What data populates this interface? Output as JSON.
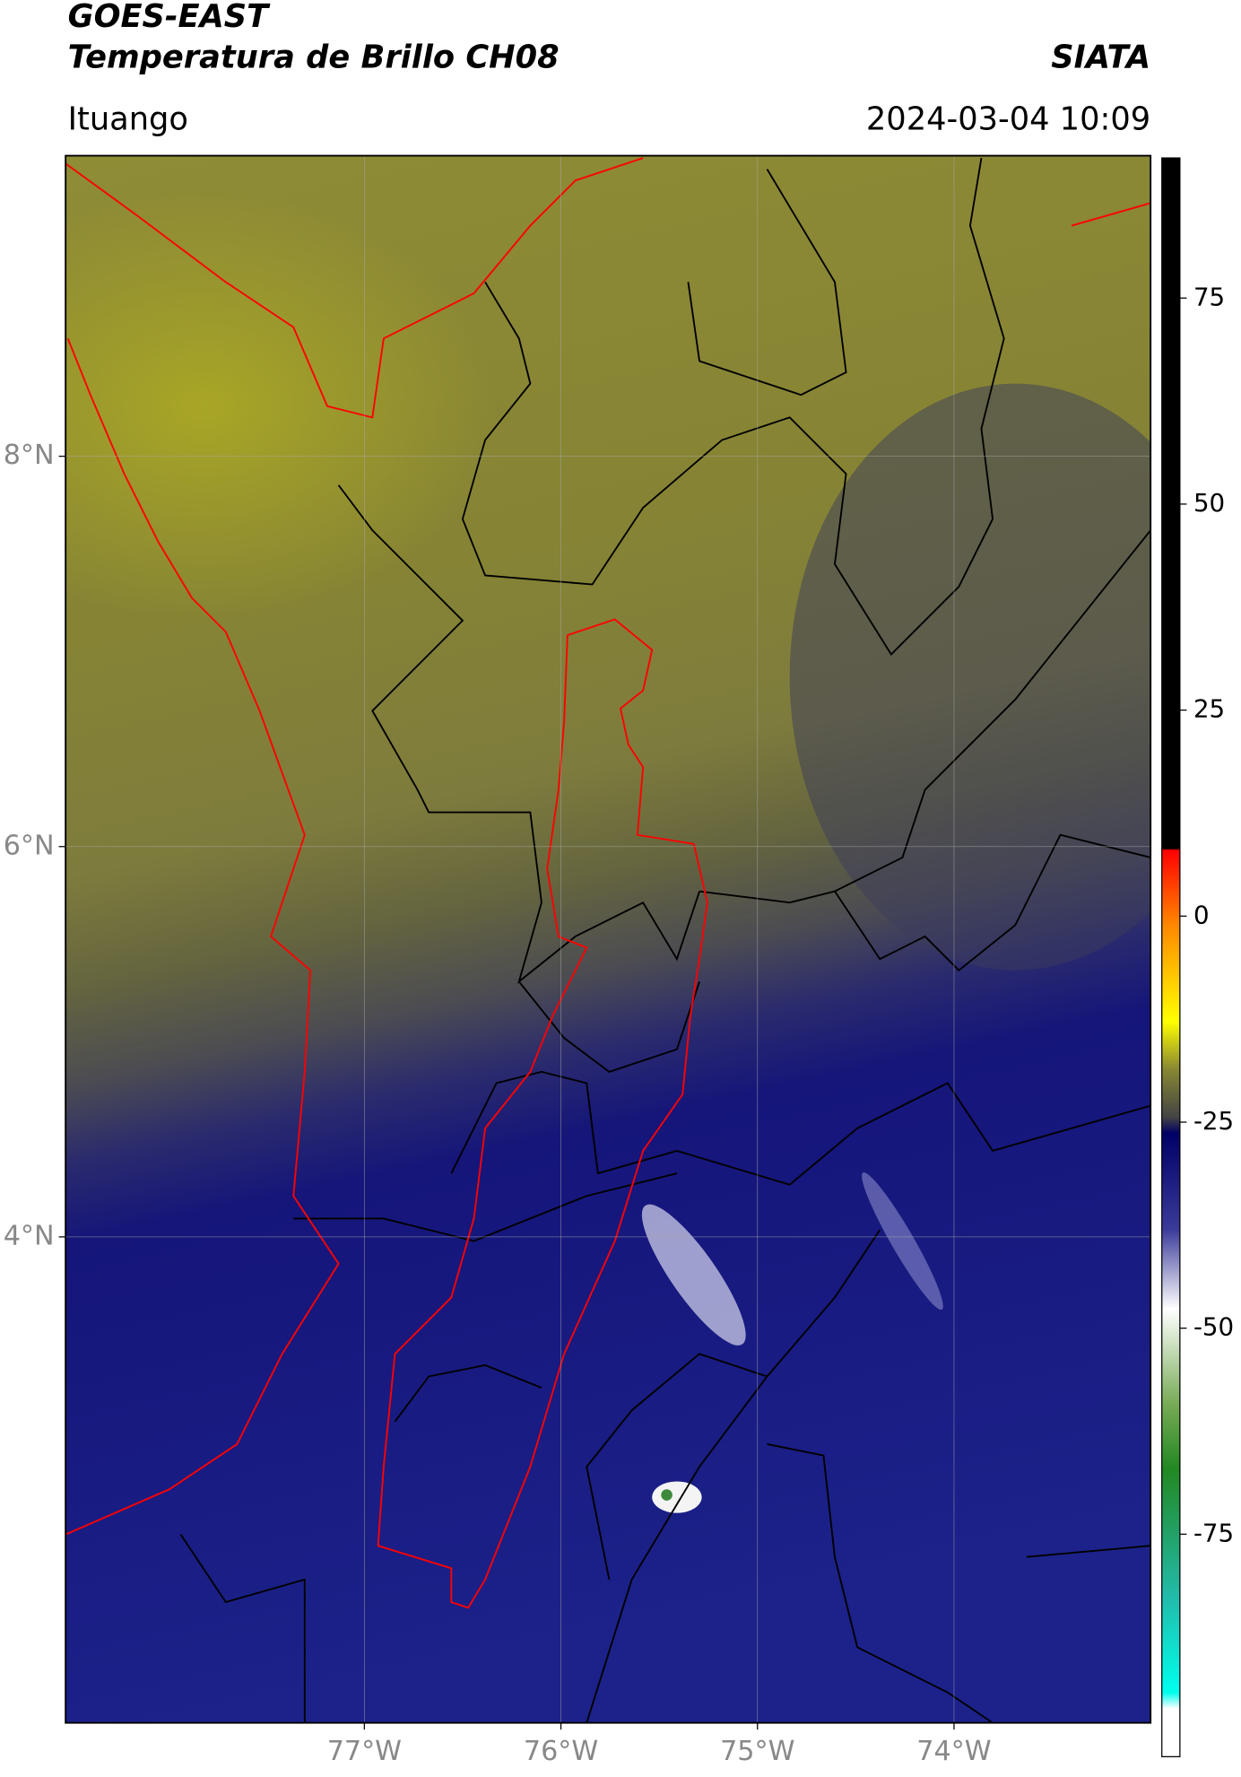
{
  "chart_data": {
    "type": "map",
    "title": "GOES-EAST",
    "subtitle": "Temperatura de Brillo CH08",
    "source": "SIATA",
    "location": "Ituango",
    "datetime": "2024-03-04 10:09",
    "xlim": [
      -78.52,
      -73.0
    ],
    "ylim": [
      1.51,
      9.54
    ],
    "xticks": [
      {
        "value": -77,
        "label": "77°W"
      },
      {
        "value": -76,
        "label": "76°W"
      },
      {
        "value": -75,
        "label": "75°W"
      },
      {
        "value": -74,
        "label": "74°W"
      }
    ],
    "yticks": [
      {
        "value": 4,
        "label": "4°N"
      },
      {
        "value": 6,
        "label": "6°N"
      },
      {
        "value": 8,
        "label": "8°N"
      }
    ],
    "grid": true,
    "colorbar": {
      "lim": [
        -102,
        92
      ],
      "ticks": [
        75,
        50,
        25,
        0,
        -25,
        -50,
        -75
      ]
    }
  }
}
